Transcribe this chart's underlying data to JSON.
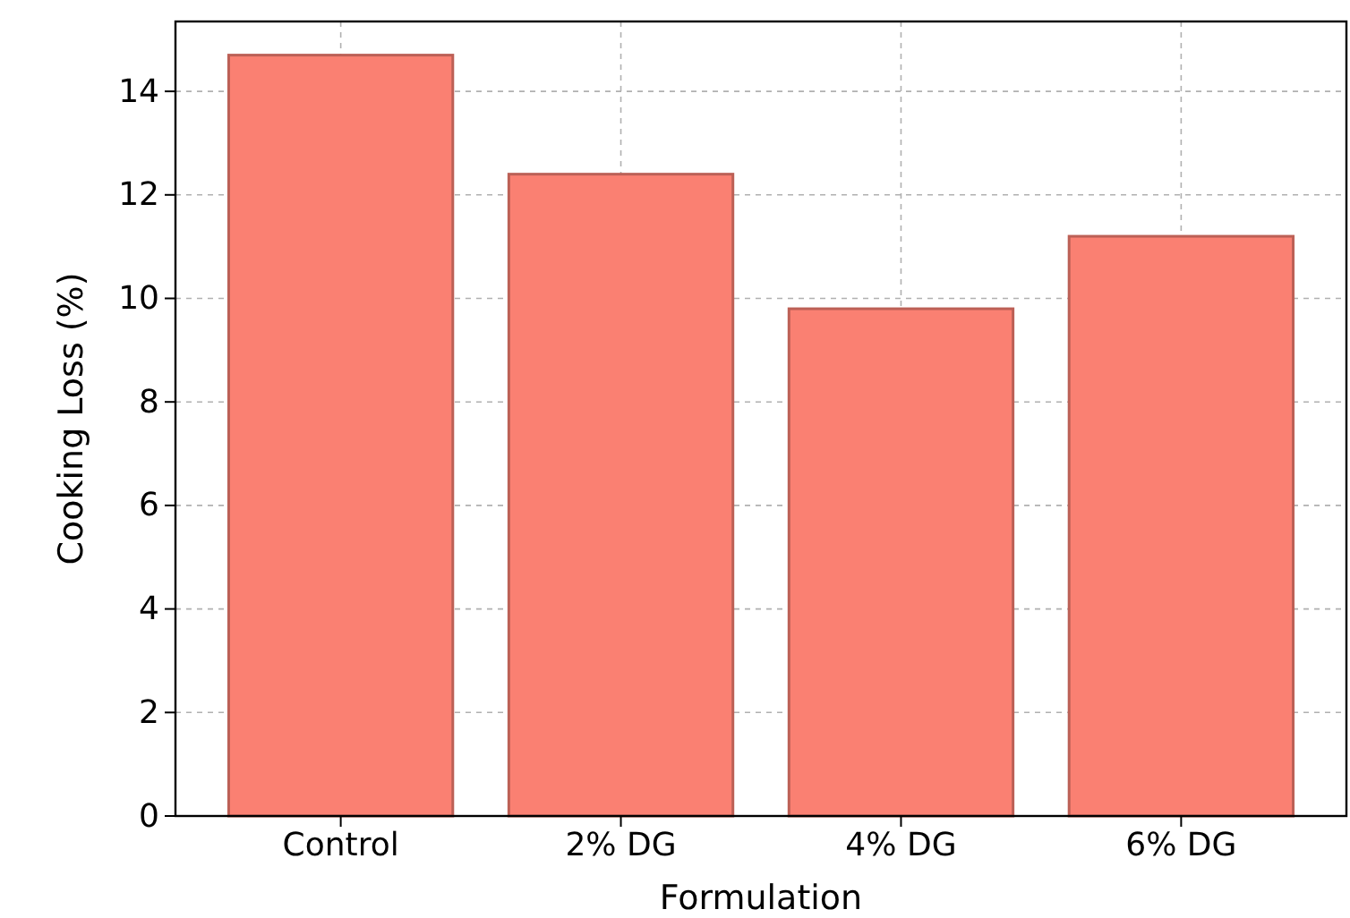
{
  "chart_data": {
    "type": "bar",
    "xlabel": "Formulation",
    "ylabel": "Cooking Loss (%)",
    "categories": [
      "Control",
      "2% DG",
      "4% DG",
      "6% DG"
    ],
    "values": [
      14.7,
      12.4,
      9.8,
      11.2
    ],
    "color": "#fa8072",
    "ylim": [
      0,
      15.35
    ],
    "yticks": [
      0,
      2,
      4,
      6,
      8,
      10,
      12,
      14
    ],
    "grid": true
  }
}
